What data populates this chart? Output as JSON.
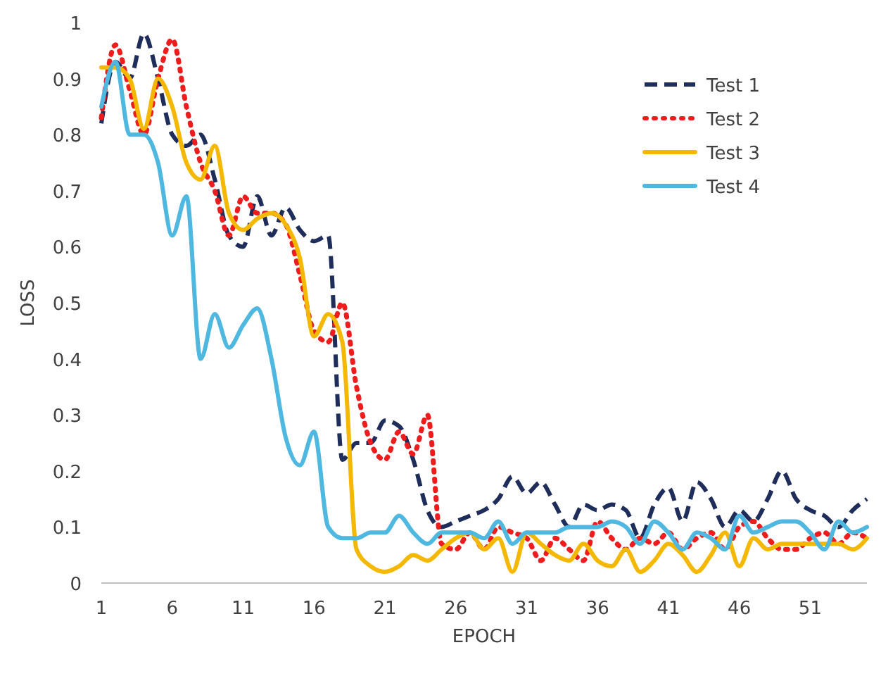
{
  "chart_data": {
    "type": "line",
    "xlabel": "EPOCH",
    "ylabel": "LOSS",
    "x": [
      1,
      2,
      3,
      4,
      5,
      6,
      7,
      8,
      9,
      10,
      11,
      12,
      13,
      14,
      15,
      16,
      17,
      18,
      19,
      20,
      21,
      22,
      23,
      24,
      25,
      26,
      27,
      28,
      29,
      30,
      31,
      32,
      33,
      34,
      35,
      36,
      37,
      38,
      39,
      40,
      41,
      42,
      43,
      44,
      45,
      46,
      47,
      48,
      49,
      50,
      51,
      52,
      53,
      54,
      55
    ],
    "xlim": [
      1,
      55
    ],
    "xticks": [
      1,
      6,
      11,
      16,
      21,
      26,
      31,
      36,
      41,
      46,
      51
    ],
    "ylim": [
      0,
      1
    ],
    "yticks": [
      0,
      0.1,
      0.2,
      0.3,
      0.4,
      0.5,
      0.6,
      0.7,
      0.8,
      0.9,
      1
    ],
    "grid": false,
    "legend": "top right",
    "marker": "none",
    "series": [
      {
        "name": "Test 1",
        "color": "#1f2d5a",
        "line_style": "dashed",
        "values": [
          0.82,
          0.93,
          0.9,
          0.98,
          0.9,
          0.8,
          0.78,
          0.8,
          0.72,
          0.62,
          0.6,
          0.69,
          0.62,
          0.67,
          0.63,
          0.61,
          0.62,
          0.22,
          0.25,
          0.25,
          0.29,
          0.28,
          0.22,
          0.13,
          0.1,
          0.11,
          0.12,
          0.13,
          0.15,
          0.19,
          0.16,
          0.18,
          0.14,
          0.1,
          0.14,
          0.13,
          0.14,
          0.13,
          0.08,
          0.14,
          0.17,
          0.11,
          0.18,
          0.15,
          0.1,
          0.13,
          0.11,
          0.15,
          0.2,
          0.15,
          0.13,
          0.12,
          0.1,
          0.13,
          0.15
        ]
      },
      {
        "name": "Test 2",
        "color": "#ee1c1c",
        "line_style": "dotted",
        "values": [
          0.83,
          0.96,
          0.88,
          0.8,
          0.9,
          0.97,
          0.85,
          0.75,
          0.7,
          0.62,
          0.69,
          0.66,
          0.66,
          0.64,
          0.55,
          0.45,
          0.43,
          0.5,
          0.35,
          0.25,
          0.22,
          0.27,
          0.23,
          0.3,
          0.07,
          0.06,
          0.09,
          0.06,
          0.1,
          0.09,
          0.08,
          0.04,
          0.08,
          0.06,
          0.04,
          0.11,
          0.08,
          0.06,
          0.08,
          0.07,
          0.09,
          0.06,
          0.08,
          0.09,
          0.06,
          0.1,
          0.11,
          0.08,
          0.06,
          0.06,
          0.08,
          0.09,
          0.07,
          0.09,
          0.08
        ]
      },
      {
        "name": "Test 3",
        "color": "#f5b800",
        "line_style": "solid",
        "values": [
          0.92,
          0.92,
          0.9,
          0.81,
          0.9,
          0.85,
          0.75,
          0.72,
          0.78,
          0.66,
          0.63,
          0.65,
          0.66,
          0.64,
          0.58,
          0.44,
          0.48,
          0.43,
          0.06,
          0.03,
          0.02,
          0.03,
          0.05,
          0.04,
          0.06,
          0.08,
          0.09,
          0.06,
          0.08,
          0.02,
          0.09,
          0.07,
          0.05,
          0.04,
          0.07,
          0.04,
          0.03,
          0.06,
          0.02,
          0.04,
          0.07,
          0.05,
          0.02,
          0.05,
          0.09,
          0.03,
          0.08,
          0.06,
          0.07,
          0.07,
          0.07,
          0.07,
          0.07,
          0.06,
          0.08
        ]
      },
      {
        "name": "Test 4",
        "color": "#4fb8e0",
        "line_style": "solid",
        "values": [
          0.85,
          0.93,
          0.8,
          0.8,
          0.75,
          0.62,
          0.69,
          0.4,
          0.48,
          0.42,
          0.46,
          0.49,
          0.4,
          0.26,
          0.21,
          0.27,
          0.1,
          0.08,
          0.08,
          0.09,
          0.09,
          0.12,
          0.09,
          0.07,
          0.09,
          0.09,
          0.09,
          0.08,
          0.11,
          0.07,
          0.09,
          0.09,
          0.09,
          0.1,
          0.1,
          0.1,
          0.11,
          0.1,
          0.07,
          0.11,
          0.09,
          0.06,
          0.09,
          0.08,
          0.06,
          0.12,
          0.09,
          0.1,
          0.11,
          0.11,
          0.09,
          0.06,
          0.11,
          0.09,
          0.1
        ]
      }
    ]
  }
}
